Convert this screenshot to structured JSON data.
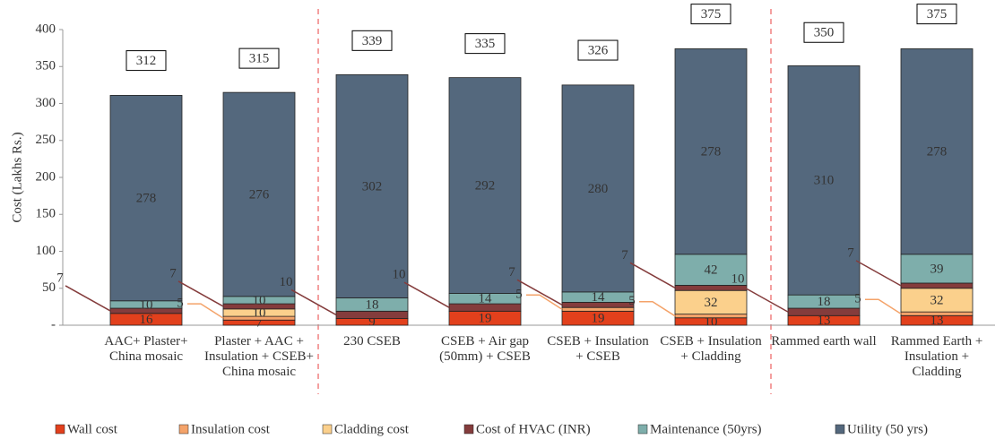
{
  "chart_data": {
    "type": "stacked_bar",
    "y_label": "Cost (Lakhs Rs.)",
    "categories": [
      "AAC+ Plaster+ China mosaic",
      "Plaster + AAC + Insulation + CSEB+ China mosaic",
      "230 CSEB",
      "CSEB + Air gap (50mm) + CSEB",
      "CSEB + Insulation + CSEB",
      "CSEB + Insulation + Cladding",
      "Rammed earth wall",
      "Rammed Earth + Insulation + Cladding"
    ],
    "series": [
      {
        "name": "Wall cost",
        "color": "#e2401c",
        "values": [
          16,
          7,
          9,
          19,
          19,
          10,
          13,
          13
        ]
      },
      {
        "name": "Insulation cost",
        "color": "#f4a36a",
        "values": [
          null,
          5,
          null,
          null,
          5,
          5,
          null,
          5
        ]
      },
      {
        "name": "Cladding cost",
        "color": "#fbd08c",
        "values": [
          null,
          10,
          null,
          null,
          null,
          32,
          null,
          32
        ]
      },
      {
        "name": "Cost of HVAC (INR)",
        "color": "#843c3c",
        "values": [
          7,
          7,
          10,
          10,
          7,
          7,
          10,
          7
        ]
      },
      {
        "name": "Maintenance (50yrs)",
        "color": "#7eaeab",
        "values": [
          10,
          10,
          18,
          14,
          14,
          42,
          18,
          39
        ]
      },
      {
        "name": "Utility (50 yrs)",
        "color": "#54687d",
        "values": [
          278,
          276,
          302,
          292,
          280,
          278,
          310,
          278
        ]
      }
    ],
    "totals": [
      312,
      315,
      339,
      335,
      326,
      375,
      350,
      375
    ],
    "ylim": [
      0,
      400
    ],
    "yticks": [
      {
        "value": 0,
        "label": "-"
      },
      50,
      100,
      150,
      200,
      250,
      300,
      350,
      400
    ],
    "grid": false
  }
}
